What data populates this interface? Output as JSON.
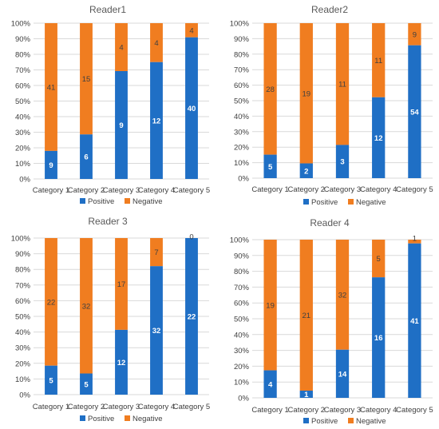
{
  "colors": {
    "positive": "#1f6fc5",
    "negative": "#f07d20",
    "grid": "#d9d9d9",
    "text": "#404040"
  },
  "chart_data": [
    {
      "type": "bar",
      "stacked": "percent",
      "title": "Reader1",
      "categories": [
        "Category 1",
        "Category 2",
        "Category 3",
        "Category 4",
        "Category 5"
      ],
      "series": [
        {
          "name": "Positive",
          "values": [
            9,
            6,
            9,
            12,
            40
          ]
        },
        {
          "name": "Negative",
          "values": [
            41,
            15,
            4,
            4,
            4
          ]
        }
      ],
      "yticks": [
        "0%",
        "10%",
        "20%",
        "30%",
        "40%",
        "50%",
        "60%",
        "70%",
        "80%",
        "90%",
        "100%"
      ],
      "ylim": [
        0,
        100
      ],
      "grid": true,
      "legend": "bottom"
    },
    {
      "type": "bar",
      "stacked": "percent",
      "title": "Reader2",
      "categories": [
        "Category 1",
        "Category 2",
        "Category 3",
        "Category 4",
        "Category 5"
      ],
      "series": [
        {
          "name": "Positive",
          "values": [
            5,
            2,
            3,
            12,
            54
          ]
        },
        {
          "name": "Negative",
          "values": [
            28,
            19,
            11,
            11,
            9
          ]
        }
      ],
      "yticks": [
        "0%",
        "10%",
        "20%",
        "30%",
        "40%",
        "50%",
        "60%",
        "70%",
        "80%",
        "90%",
        "100%"
      ],
      "ylim": [
        0,
        100
      ],
      "grid": true,
      "legend": "bottom"
    },
    {
      "type": "bar",
      "stacked": "percent",
      "title": "Reader 3",
      "categories": [
        "Category 1",
        "Category 2",
        "Category 3",
        "Category 4",
        "Category 5"
      ],
      "series": [
        {
          "name": "Positive",
          "values": [
            5,
            5,
            12,
            32,
            22
          ]
        },
        {
          "name": "Negative",
          "values": [
            22,
            32,
            17,
            7,
            0
          ]
        }
      ],
      "yticks": [
        "0%",
        "10%",
        "20%",
        "30%",
        "40%",
        "50%",
        "60%",
        "70%",
        "80%",
        "90%",
        "100%"
      ],
      "ylim": [
        0,
        100
      ],
      "grid": true,
      "legend": "bottom"
    },
    {
      "type": "bar",
      "stacked": "percent",
      "title": "Reader 4",
      "categories": [
        "Category 1",
        "Category 2",
        "Category 3",
        "Category 4",
        "Category 5"
      ],
      "series": [
        {
          "name": "Positive",
          "values": [
            4,
            1,
            14,
            16,
            41
          ]
        },
        {
          "name": "Negative",
          "values": [
            19,
            21,
            32,
            5,
            1
          ]
        }
      ],
      "yticks": [
        "0%",
        "10%",
        "20%",
        "30%",
        "40%",
        "50%",
        "60%",
        "70%",
        "80%",
        "90%",
        "100%"
      ],
      "ylim": [
        0,
        100
      ],
      "grid": true,
      "legend": "bottom"
    }
  ]
}
